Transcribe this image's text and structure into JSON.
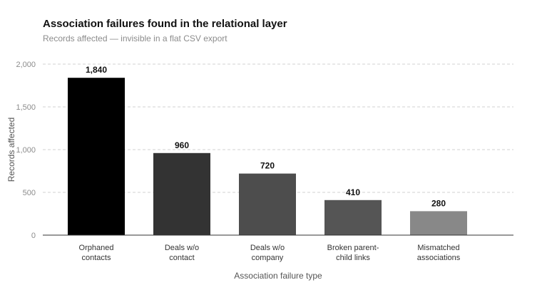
{
  "chart_data": {
    "type": "bar",
    "title": "Association failures found in the relational layer",
    "subtitle": "Records affected — invisible in a flat CSV export",
    "xlabel": "Association failure type",
    "ylabel": "Records affected",
    "categories": [
      [
        "Orphaned",
        "contacts"
      ],
      [
        "Deals w/o",
        "contact"
      ],
      [
        "Deals w/o",
        "company"
      ],
      [
        "Broken parent-",
        "child links"
      ],
      [
        "Mismatched",
        "associations"
      ]
    ],
    "values": [
      1840,
      960,
      720,
      410,
      280
    ],
    "value_labels": [
      "1,840",
      "960",
      "720",
      "410",
      "280"
    ],
    "bar_colors": [
      "#000000",
      "#333333",
      "#4d4d4d",
      "#555555",
      "#888888"
    ],
    "ylim": [
      0,
      2000
    ],
    "yticks": [
      0,
      500,
      1000,
      1500,
      2000
    ],
    "ytick_labels": [
      "0",
      "500",
      "1,000",
      "1,500",
      "2,000"
    ],
    "grid": true,
    "legend": "none"
  }
}
